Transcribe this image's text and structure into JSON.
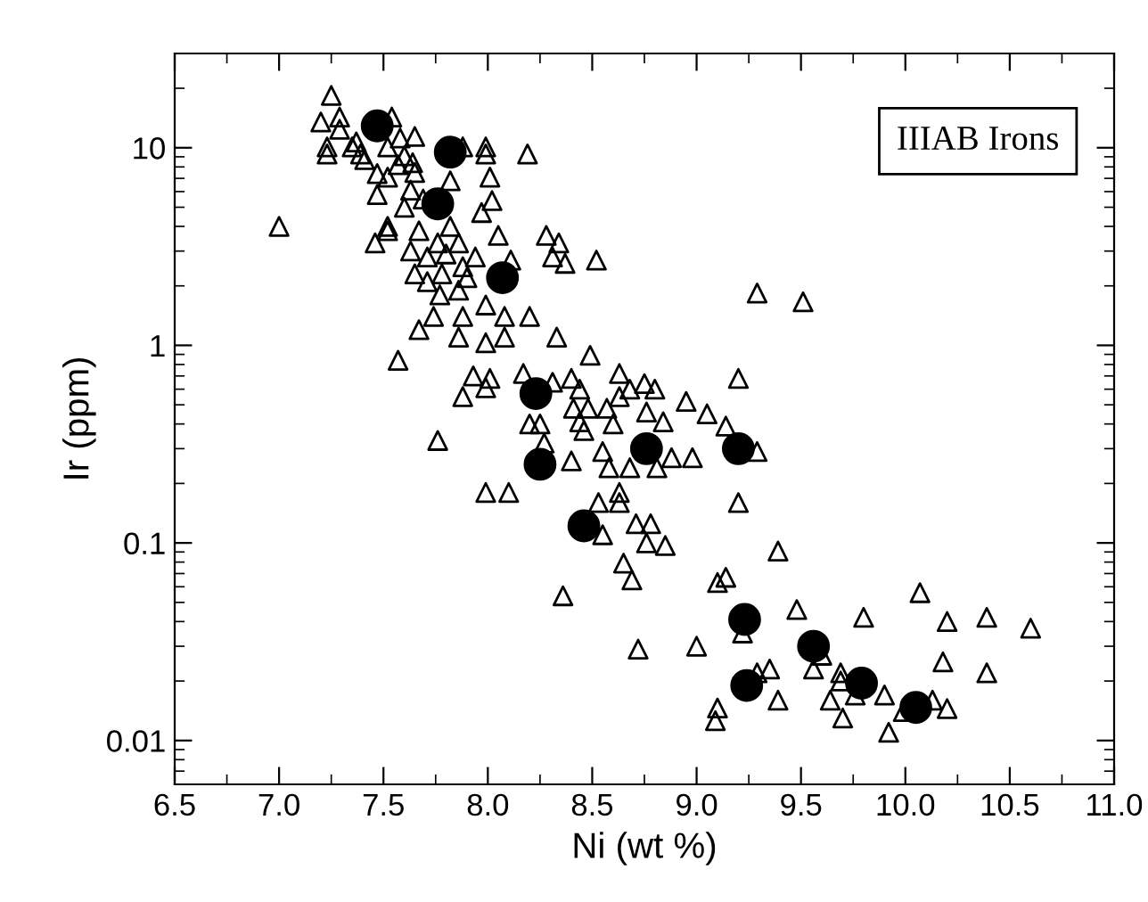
{
  "chart_data": {
    "type": "scatter",
    "xlabel": "Ni (wt %)",
    "ylabel": "Ir (ppm)",
    "annotations": [
      "IIIAB Irons"
    ],
    "log": "y",
    "grid": false,
    "legend": false,
    "xlim": [
      6.5,
      11.0
    ],
    "ylim": [
      0.006,
      30
    ],
    "xticks": [
      {
        "value": 6.5,
        "label": "6.5"
      },
      {
        "value": 6.75,
        "label": null
      },
      {
        "value": 7.0,
        "label": "7.0"
      },
      {
        "value": 7.25,
        "label": null
      },
      {
        "value": 7.5,
        "label": "7.5"
      },
      {
        "value": 7.75,
        "label": null
      },
      {
        "value": 8.0,
        "label": "8.0"
      },
      {
        "value": 8.25,
        "label": null
      },
      {
        "value": 8.5,
        "label": "8.5"
      },
      {
        "value": 8.75,
        "label": null
      },
      {
        "value": 9.0,
        "label": "9.0"
      },
      {
        "value": 9.25,
        "label": null
      },
      {
        "value": 9.5,
        "label": "9.5"
      },
      {
        "value": 9.75,
        "label": null
      },
      {
        "value": 10.0,
        "label": "10.0"
      },
      {
        "value": 10.25,
        "label": null
      },
      {
        "value": 10.5,
        "label": "10.5"
      },
      {
        "value": 10.75,
        "label": null
      },
      {
        "value": 11.0,
        "label": "11.0"
      }
    ],
    "yticks": [
      {
        "value": 0.006,
        "label": null
      },
      {
        "value": 0.007,
        "label": null
      },
      {
        "value": 0.008,
        "label": null
      },
      {
        "value": 0.009,
        "label": null
      },
      0.01,
      {
        "value": 0.02,
        "label": null
      },
      {
        "value": 0.03,
        "label": null
      },
      {
        "value": 0.04,
        "label": null
      },
      {
        "value": 0.05,
        "label": null
      },
      {
        "value": 0.06,
        "label": null
      },
      {
        "value": 0.07,
        "label": null
      },
      {
        "value": 0.08,
        "label": null
      },
      {
        "value": 0.09,
        "label": null
      },
      0.1,
      {
        "value": 0.2,
        "label": null
      },
      {
        "value": 0.3,
        "label": null
      },
      {
        "value": 0.4,
        "label": null
      },
      {
        "value": 0.5,
        "label": null
      },
      {
        "value": 0.6,
        "label": null
      },
      {
        "value": 0.7,
        "label": null
      },
      {
        "value": 0.8,
        "label": null
      },
      {
        "value": 0.9,
        "label": null
      },
      1,
      {
        "value": 2,
        "label": null
      },
      {
        "value": 3,
        "label": null
      },
      {
        "value": 4,
        "label": null
      },
      {
        "value": 5,
        "label": null
      },
      {
        "value": 6,
        "label": null
      },
      {
        "value": 7,
        "label": null
      },
      {
        "value": 8,
        "label": null
      },
      {
        "value": 9,
        "label": null
      },
      10,
      {
        "value": 20,
        "label": null
      },
      {
        "value": 30,
        "label": null
      }
    ],
    "series": [
      {
        "marker": "triangle",
        "color": "#000000",
        "x": [
          7.25,
          7.2,
          7.29,
          7.29,
          7.23,
          7.23,
          7.35,
          7.39,
          7.41,
          7.37,
          7.54,
          7.58,
          7.65,
          7.52,
          7.6,
          7.57,
          7.64,
          7.65,
          7.47,
          7.52,
          7.47,
          7.63,
          7.6,
          7.69,
          7.82,
          7.88,
          7.99,
          7.99,
          8.19,
          8.01,
          8.02,
          7.97,
          8.05,
          7.52,
          7.52,
          7.46,
          7.0,
          7.63,
          7.67,
          7.76,
          7.71,
          7.82,
          7.86,
          7.8,
          7.88,
          7.94,
          7.65,
          7.71,
          7.78,
          7.86,
          7.77,
          7.9,
          8.11,
          8.28,
          8.34,
          8.31,
          8.37,
          7.99,
          8.08,
          8.2,
          7.88,
          7.74,
          7.67,
          7.86,
          7.99,
          8.08,
          8.33,
          7.57,
          7.93,
          8.01,
          7.99,
          7.88,
          8.17,
          8.31,
          8.52,
          9.29,
          9.51,
          8.49,
          8.4,
          8.63,
          8.75,
          8.8,
          8.68,
          8.63,
          8.44,
          9.2,
          8.95,
          9.05,
          9.14,
          8.76,
          8.84,
          8.57,
          8.48,
          8.41,
          8.44,
          8.46,
          8.6,
          8.2,
          8.25,
          8.27,
          7.76,
          8.55,
          8.68,
          8.81,
          8.88,
          8.98,
          8.4,
          8.58,
          9.29,
          8.63,
          8.53,
          8.63,
          8.71,
          8.78,
          8.76,
          8.85,
          8.55,
          7.99,
          8.1,
          9.2,
          8.65,
          8.69,
          9.14,
          9.1,
          9.39,
          8.36,
          8.72,
          9.0,
          9.48,
          9.8,
          10.07,
          10.2,
          10.39,
          10.6,
          10.18,
          10.39,
          9.29,
          9.35,
          9.1,
          9.09,
          9.39,
          9.56,
          9.6,
          9.69,
          9.69,
          9.64,
          9.7,
          9.76,
          9.9,
          9.92,
          9.99,
          10.13,
          10.2,
          9.22
        ],
        "values": [
          18.4,
          13.5,
          14.3,
          12.4,
          10.1,
          9.3,
          10.1,
          9.3,
          8.7,
          10.7,
          14.3,
          11.2,
          11.4,
          10.1,
          9.1,
          8.2,
          8.4,
          7.5,
          7.4,
          7.1,
          5.8,
          6.1,
          5.0,
          5.5,
          6.8,
          10.1,
          10.1,
          9.3,
          9.3,
          7.1,
          5.4,
          4.7,
          3.6,
          4.0,
          3.8,
          3.3,
          4.0,
          3.0,
          3.8,
          3.3,
          2.8,
          4.0,
          3.3,
          2.9,
          2.5,
          2.8,
          2.3,
          2.1,
          2.3,
          1.9,
          1.8,
          2.2,
          2.7,
          3.6,
          3.3,
          2.8,
          2.6,
          1.6,
          1.4,
          1.4,
          1.4,
          1.4,
          1.2,
          1.1,
          1.03,
          1.1,
          1.1,
          0.84,
          0.7,
          0.68,
          0.61,
          0.55,
          0.72,
          0.65,
          2.7,
          1.84,
          1.66,
          0.89,
          0.68,
          0.72,
          0.64,
          0.6,
          0.6,
          0.55,
          0.6,
          0.68,
          0.52,
          0.45,
          0.39,
          0.46,
          0.41,
          0.48,
          0.48,
          0.48,
          0.41,
          0.37,
          0.4,
          0.4,
          0.4,
          0.32,
          0.33,
          0.29,
          0.24,
          0.24,
          0.27,
          0.27,
          0.26,
          0.24,
          0.29,
          0.18,
          0.16,
          0.16,
          0.125,
          0.125,
          0.1,
          0.097,
          0.11,
          0.18,
          0.18,
          0.16,
          0.079,
          0.065,
          0.067,
          0.063,
          0.091,
          0.054,
          0.029,
          0.03,
          0.046,
          0.042,
          0.056,
          0.04,
          0.042,
          0.037,
          0.025,
          0.022,
          0.022,
          0.023,
          0.0146,
          0.0126,
          0.016,
          0.023,
          0.027,
          0.022,
          0.02,
          0.016,
          0.013,
          0.017,
          0.017,
          0.011,
          0.014,
          0.016,
          0.0145,
          0.035
        ]
      },
      {
        "marker": "circle",
        "color": "#000000",
        "x": [
          7.47,
          7.82,
          7.76,
          8.07,
          8.23,
          8.25,
          8.76,
          9.2,
          8.46,
          9.23,
          9.56,
          9.24,
          9.79,
          10.05
        ],
        "values": [
          12.9,
          9.5,
          5.2,
          2.2,
          0.57,
          0.25,
          0.3,
          0.3,
          0.122,
          0.041,
          0.03,
          0.019,
          0.0195,
          0.0147
        ]
      }
    ]
  }
}
